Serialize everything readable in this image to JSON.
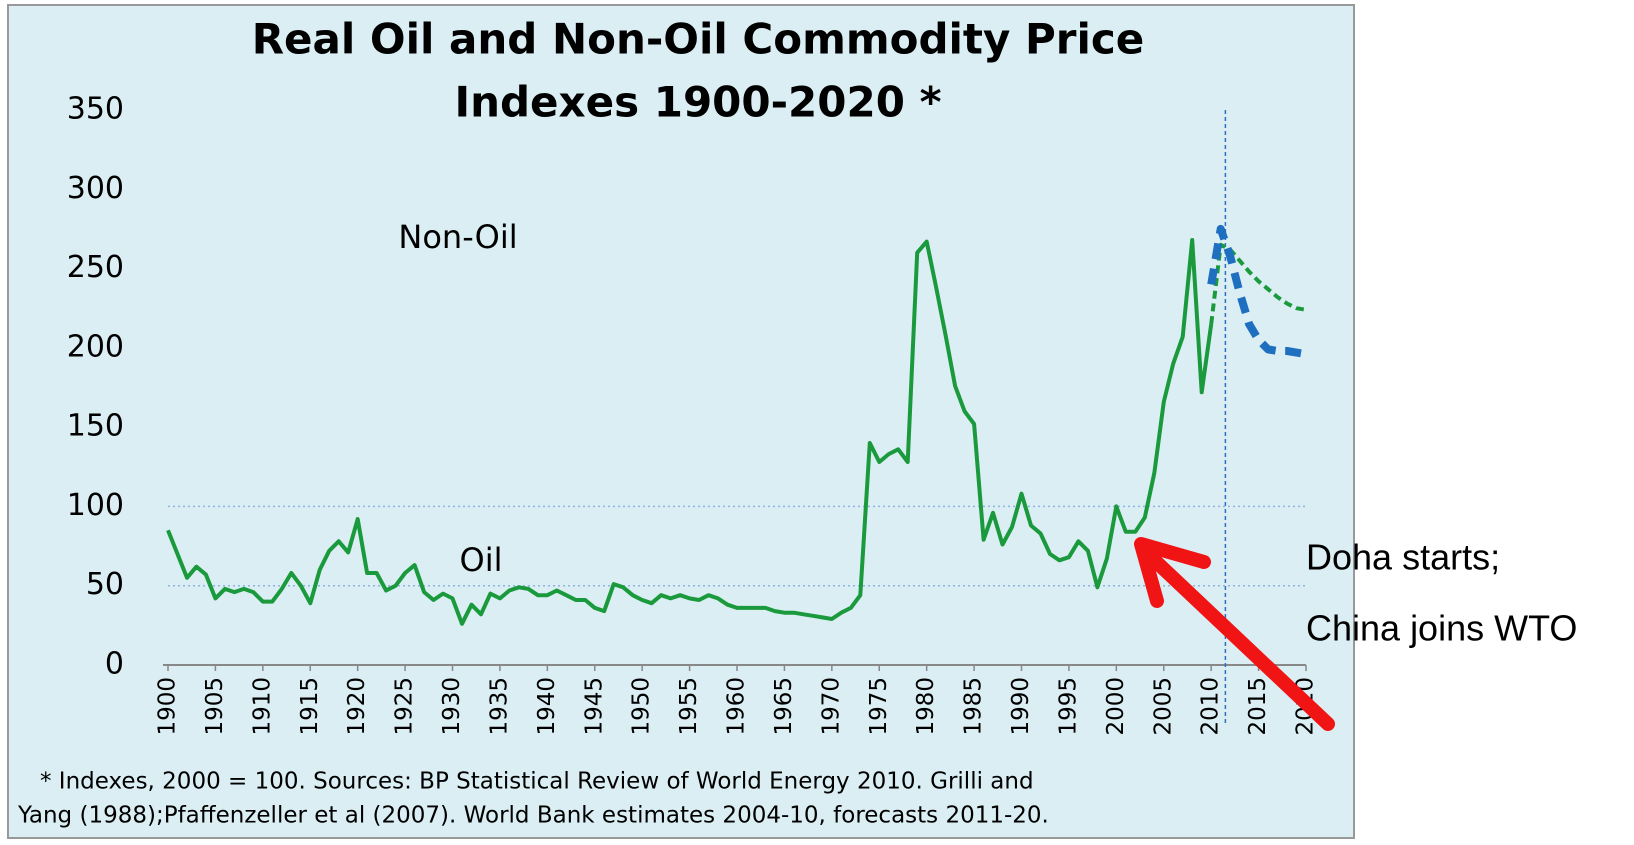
{
  "chart_data": {
    "type": "line",
    "title": [
      "Real Oil and Non-Oil Commodity Price",
      "Indexes  1900-2020 *"
    ],
    "labels": [
      "Non-Oil",
      "Oil"
    ],
    "footnote": [
      "* Indexes, 2000 = 100. Sources: BP Statistical  Review of World Energy 2010. Grilli and",
      "Yang (1988);Pfaffenzeller et al (2007). World Bank estimates 2004-10, forecasts 2011-20."
    ],
    "annotations": [
      "Doha starts;",
      "China joins WTO"
    ],
    "xlim": [
      1900,
      2020
    ],
    "xticks": [
      1900,
      1905,
      1910,
      1915,
      1920,
      1925,
      1930,
      1935,
      1940,
      1945,
      1950,
      1955,
      1960,
      1965,
      1970,
      1975,
      1980,
      1985,
      1990,
      1995,
      2000,
      2005,
      2010,
      2015,
      2020
    ],
    "ylim": [
      0,
      350
    ],
    "yticks": [
      0,
      50,
      100,
      150,
      200,
      250,
      300,
      350
    ],
    "grid_values": [
      50,
      100
    ],
    "reference_x": 2011.5,
    "series": [
      {
        "color": "#1a9a3c",
        "dashed": false,
        "width": 4,
        "x": [
          1900,
          1901,
          1902,
          1903,
          1904,
          1905,
          1906,
          1907,
          1908,
          1909,
          1910,
          1911,
          1912,
          1913,
          1914,
          1915,
          1916,
          1917,
          1918,
          1919,
          1920,
          1921,
          1922,
          1923,
          1924,
          1925,
          1926,
          1927,
          1928,
          1929,
          1930,
          1931,
          1932,
          1933,
          1934,
          1935,
          1936,
          1937,
          1938,
          1939,
          1940,
          1941,
          1942,
          1943,
          1944,
          1945,
          1946,
          1947,
          1948,
          1949,
          1950,
          1951,
          1952,
          1953,
          1954,
          1955,
          1956,
          1957,
          1958,
          1959,
          1960,
          1961,
          1962,
          1963,
          1964,
          1965,
          1966,
          1967,
          1968,
          1969,
          1970,
          1971,
          1972,
          1973,
          1974,
          1975,
          1976,
          1977,
          1978,
          1979,
          1980,
          1981,
          1982,
          1983,
          1984,
          1985,
          1986,
          1987,
          1988,
          1989,
          1990,
          1991,
          1992,
          1993,
          1994,
          1995,
          1996,
          1997,
          1998,
          1999,
          2000,
          2001,
          2002,
          2003,
          2004,
          2005,
          2006,
          2007,
          2008,
          2009,
          2010
        ],
        "values": [
          85,
          70,
          55,
          62,
          57,
          42,
          48,
          46,
          48,
          46,
          40,
          40,
          48,
          58,
          50,
          39,
          60,
          72,
          78,
          71,
          92,
          58,
          58,
          47,
          50,
          58,
          63,
          46,
          41,
          45,
          42,
          26,
          38,
          32,
          45,
          42,
          47,
          49,
          48,
          44,
          44,
          47,
          44,
          41,
          41,
          36,
          34,
          51,
          49,
          44,
          41,
          39,
          44,
          42,
          44,
          42,
          41,
          44,
          42,
          38,
          36,
          36,
          36,
          36,
          34,
          33,
          33,
          32,
          31,
          30,
          29,
          33,
          36,
          44,
          140,
          128,
          133,
          136,
          128,
          260,
          267,
          238,
          208,
          176,
          160,
          152,
          79,
          96,
          76,
          87,
          108,
          88,
          83,
          70,
          66,
          68,
          78,
          72,
          49,
          67,
          100,
          84,
          84,
          93,
          121,
          166,
          190,
          207,
          268,
          172,
          215
        ]
      },
      {
        "color": "#1a9a3c",
        "dashed": true,
        "width": 4,
        "x": [
          2010,
          2011,
          2012,
          2013,
          2014,
          2015,
          2016,
          2017,
          2018,
          2019,
          2020
        ],
        "values": [
          215,
          265,
          262,
          255,
          248,
          242,
          237,
          232,
          228,
          225,
          224
        ]
      },
      {
        "color": "#1f6fc0",
        "dashed": true,
        "width": 8,
        "x": [
          2010,
          2011,
          2012,
          2013,
          2014,
          2015,
          2016,
          2017,
          2018,
          2019,
          2020
        ],
        "values": [
          240,
          275,
          258,
          235,
          215,
          205,
          199,
          198,
          198,
          197,
          196
        ]
      }
    ]
  }
}
